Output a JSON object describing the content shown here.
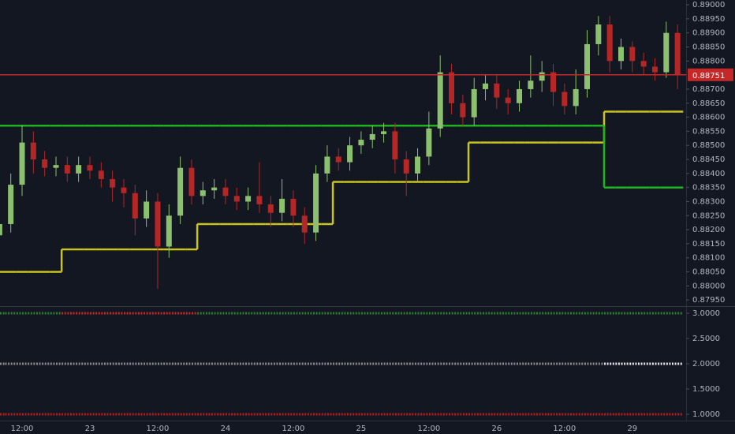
{
  "chart_data": [
    {
      "type": "candlestick",
      "categories": [
        null,
        null,
        "12:00",
        null,
        null,
        null,
        null,
        null,
        "23",
        null,
        null,
        null,
        null,
        null,
        "12:00",
        null,
        null,
        null,
        null,
        null,
        "24",
        null,
        null,
        null,
        null,
        null,
        "12:00",
        null,
        null,
        null,
        null,
        null,
        "25",
        null,
        null,
        null,
        null,
        null,
        "12:00",
        null,
        null,
        null,
        null,
        null,
        "26",
        null,
        null,
        null,
        null,
        null,
        "12:00",
        null,
        null,
        null,
        null,
        null,
        "29",
        null,
        null,
        null,
        null
      ],
      "open": [
        0.8818,
        0.8822,
        0.8836,
        0.8851,
        0.8845,
        0.8842,
        0.8843,
        0.884,
        0.8843,
        0.8841,
        0.8838,
        0.8835,
        0.8833,
        0.8824,
        0.883,
        0.8814,
        0.8825,
        0.8842,
        0.8832,
        0.8834,
        0.8835,
        0.8832,
        0.883,
        0.8832,
        0.8829,
        0.8826,
        0.8831,
        0.8825,
        0.8819,
        0.884,
        0.8846,
        0.8844,
        0.885,
        0.8852,
        0.8854,
        0.8855,
        0.8845,
        0.884,
        0.8846,
        0.8856,
        0.8876,
        0.8865,
        0.886,
        0.887,
        0.8872,
        0.8867,
        0.8865,
        0.887,
        0.8873,
        0.8876,
        0.8869,
        0.8864,
        0.887,
        0.8886,
        0.8893,
        0.888,
        0.8885,
        0.888,
        0.8878,
        0.8876,
        0.889
      ],
      "high": [
        0.8826,
        0.884,
        0.8857,
        0.8855,
        0.8848,
        0.8846,
        0.8846,
        0.8846,
        0.8846,
        0.8844,
        0.8841,
        0.8838,
        0.8836,
        0.8834,
        0.8833,
        0.8829,
        0.8846,
        0.8845,
        0.8837,
        0.8838,
        0.8838,
        0.8835,
        0.8835,
        0.8844,
        0.8832,
        0.8838,
        0.8834,
        0.8828,
        0.8843,
        0.885,
        0.8849,
        0.8853,
        0.8855,
        0.8857,
        0.8858,
        0.8858,
        0.8848,
        0.8849,
        0.8862,
        0.8882,
        0.8879,
        0.8868,
        0.8874,
        0.8875,
        0.8875,
        0.887,
        0.8873,
        0.8882,
        0.888,
        0.8879,
        0.8872,
        0.8877,
        0.8891,
        0.8896,
        0.8896,
        0.8888,
        0.8887,
        0.8883,
        0.8881,
        0.8894,
        0.8893
      ],
      "low": [
        0.8812,
        0.8819,
        0.8832,
        0.884,
        0.8839,
        0.8839,
        0.8837,
        0.8837,
        0.8838,
        0.8835,
        0.883,
        0.8828,
        0.8818,
        0.8821,
        0.8799,
        0.881,
        0.8822,
        0.8829,
        0.8829,
        0.8831,
        0.8829,
        0.8827,
        0.8827,
        0.8826,
        0.8821,
        0.8823,
        0.8821,
        0.8815,
        0.8816,
        0.8837,
        0.8841,
        0.8841,
        0.8847,
        0.8849,
        0.8851,
        0.884,
        0.8832,
        0.8837,
        0.8843,
        0.8853,
        0.8861,
        0.8857,
        0.8857,
        0.8866,
        0.8863,
        0.8861,
        0.8862,
        0.8867,
        0.8869,
        0.8864,
        0.8861,
        0.8861,
        0.8867,
        0.8882,
        0.8876,
        0.8877,
        0.8876,
        0.8875,
        0.8873,
        0.8874,
        0.887
      ],
      "close": [
        0.8822,
        0.8836,
        0.8851,
        0.8845,
        0.8842,
        0.8843,
        0.884,
        0.8843,
        0.8841,
        0.8838,
        0.8835,
        0.8833,
        0.8824,
        0.883,
        0.8814,
        0.8825,
        0.8842,
        0.8832,
        0.8834,
        0.8835,
        0.8832,
        0.883,
        0.8832,
        0.8829,
        0.8826,
        0.8831,
        0.8825,
        0.8819,
        0.884,
        0.8846,
        0.8844,
        0.885,
        0.8852,
        0.8854,
        0.8855,
        0.8845,
        0.884,
        0.8846,
        0.8856,
        0.8876,
        0.8865,
        0.886,
        0.887,
        0.8872,
        0.8867,
        0.8865,
        0.887,
        0.8873,
        0.8876,
        0.8869,
        0.8864,
        0.887,
        0.8886,
        0.8893,
        0.888,
        0.8885,
        0.888,
        0.8878,
        0.8876,
        0.889,
        0.88751
      ],
      "up_color": "#8cbf6e",
      "down_color": "#b52626",
      "series": [
        {
          "color": "#c9c41f",
          "values": [
            0.8805,
            0.8805,
            0.8805,
            0.8805,
            0.8805,
            0.8805,
            0.8813,
            0.8813,
            0.8813,
            0.8813,
            0.8813,
            0.8813,
            0.8813,
            0.8813,
            0.8813,
            0.8813,
            0.8813,
            0.8813,
            0.8822,
            0.8822,
            0.8822,
            0.8822,
            0.8822,
            0.8822,
            0.8822,
            0.8822,
            0.8822,
            0.8822,
            0.8822,
            0.8822,
            0.8837,
            0.8837,
            0.8837,
            0.8837,
            0.8837,
            0.8837,
            0.8837,
            0.8837,
            0.8837,
            0.8837,
            0.8837,
            0.8837,
            0.8851,
            0.8851,
            0.8851,
            0.8851,
            0.8851,
            0.8851,
            0.8851,
            0.8851,
            0.8851,
            0.8851,
            0.8851,
            0.8851,
            0.8862,
            0.8862,
            0.8862,
            0.8862,
            0.8862,
            0.8862,
            0.8862
          ]
        },
        {
          "color": "#1fb31f",
          "values": [
            0.8857,
            0.8857,
            0.8857,
            0.8857,
            0.8857,
            0.8857,
            0.8857,
            0.8857,
            0.8857,
            0.8857,
            0.8857,
            0.8857,
            0.8857,
            0.8857,
            0.8857,
            0.8857,
            0.8857,
            0.8857,
            0.8857,
            0.8857,
            0.8857,
            0.8857,
            0.8857,
            0.8857,
            0.8857,
            0.8857,
            0.8857,
            0.8857,
            0.8857,
            0.8857,
            0.8857,
            0.8857,
            0.8857,
            0.8857,
            0.8857,
            0.8857,
            0.8857,
            0.8857,
            0.8857,
            0.8857,
            0.8857,
            0.8857,
            0.8857,
            0.8857,
            0.8857,
            0.8857,
            0.8857,
            0.8857,
            0.8857,
            0.8857,
            0.8857,
            0.8857,
            0.8857,
            0.8857,
            0.8835,
            0.8835,
            0.8835,
            0.8835,
            0.8835,
            0.8835,
            0.8835
          ]
        }
      ],
      "price_line": {
        "value": 0.88751,
        "label": "0.88751",
        "color": "#c62828"
      },
      "ylim": [
        0.87928,
        0.89017
      ],
      "yticks": [
        {
          "value": 0.8795,
          "label": "0.87950"
        },
        {
          "value": 0.88,
          "label": "0.88000"
        },
        {
          "value": 0.8805,
          "label": "0.88050"
        },
        {
          "value": 0.881,
          "label": "0.88100"
        },
        {
          "value": 0.8815,
          "label": "0.88150"
        },
        {
          "value": 0.882,
          "label": "0.88200"
        },
        {
          "value": 0.8825,
          "label": "0.88250"
        },
        {
          "value": 0.883,
          "label": "0.88300"
        },
        {
          "value": 0.8835,
          "label": "0.88350"
        },
        {
          "value": 0.884,
          "label": "0.88400"
        },
        {
          "value": 0.8845,
          "label": "0.88450"
        },
        {
          "value": 0.885,
          "label": "0.88500"
        },
        {
          "value": 0.8855,
          "label": "0.88550"
        },
        {
          "value": 0.886,
          "label": "0.88600"
        },
        {
          "value": 0.8865,
          "label": "0.88650"
        },
        {
          "value": 0.887,
          "label": "0.88700"
        },
        {
          "value": 0.888,
          "label": "0.88800"
        },
        {
          "value": 0.8885,
          "label": "0.88850"
        },
        {
          "value": 0.889,
          "label": "0.88900"
        },
        {
          "value": 0.8895,
          "label": "0.88950"
        },
        {
          "value": 0.89,
          "label": "0.89000"
        }
      ]
    },
    {
      "type": "dots",
      "series": [
        {
          "value": 3,
          "colors": [
            "#2e7d32",
            "#2e7d32",
            "#2e7d32",
            "#2e7d32",
            "#2e7d32",
            "#2e7d32",
            "#c62828",
            "#c62828",
            "#c62828",
            "#c62828",
            "#c62828",
            "#c62828",
            "#c62828",
            "#c62828",
            "#c62828",
            "#c62828",
            "#c62828",
            "#c62828",
            "#2e7d32",
            "#2e7d32",
            "#2e7d32",
            "#2e7d32",
            "#2e7d32",
            "#2e7d32",
            "#2e7d32",
            "#2e7d32",
            "#2e7d32",
            "#2e7d32",
            "#2e7d32",
            "#2e7d32",
            "#2e7d32",
            "#2e7d32",
            "#2e7d32",
            "#2e7d32",
            "#2e7d32",
            "#2e7d32",
            "#2e7d32",
            "#2e7d32",
            "#2e7d32",
            "#2e7d32",
            "#2e7d32",
            "#2e7d32",
            "#2e7d32",
            "#2e7d32",
            "#2e7d32",
            "#2e7d32",
            "#2e7d32",
            "#2e7d32",
            "#2e7d32",
            "#2e7d32",
            "#2e7d32",
            "#2e7d32",
            "#2e7d32",
            "#2e7d32",
            "#2e7d32",
            "#2e7d32",
            "#2e7d32",
            "#2e7d32",
            "#2e7d32",
            "#2e7d32",
            "#2e7d32"
          ]
        },
        {
          "value": 2,
          "colors": [
            "#8a8a8a",
            "#8a8a8a",
            "#8a8a8a",
            "#8a8a8a",
            "#8a8a8a",
            "#8a8a8a",
            "#8a8a8a",
            "#8a8a8a",
            "#8a8a8a",
            "#8a8a8a",
            "#8a8a8a",
            "#8a8a8a",
            "#8a8a8a",
            "#8a8a8a",
            "#8a8a8a",
            "#8a8a8a",
            "#8a8a8a",
            "#8a8a8a",
            "#8a8a8a",
            "#8a8a8a",
            "#8a8a8a",
            "#8a8a8a",
            "#8a8a8a",
            "#8a8a8a",
            "#8a8a8a",
            "#8a8a8a",
            "#8a8a8a",
            "#8a8a8a",
            "#8a8a8a",
            "#8a8a8a",
            "#8a8a8a",
            "#8a8a8a",
            "#8a8a8a",
            "#8a8a8a",
            "#8a8a8a",
            "#8a8a8a",
            "#8a8a8a",
            "#8a8a8a",
            "#8a8a8a",
            "#8a8a8a",
            "#8a8a8a",
            "#8a8a8a",
            "#8a8a8a",
            "#8a8a8a",
            "#8a8a8a",
            "#8a8a8a",
            "#8a8a8a",
            "#8a8a8a",
            "#8a8a8a",
            "#8a8a8a",
            "#8a8a8a",
            "#8a8a8a",
            "#8a8a8a",
            "#8a8a8a",
            "#e6e6e6",
            "#e6e6e6",
            "#e6e6e6",
            "#e6e6e6",
            "#e6e6e6",
            "#e6e6e6",
            "#e6e6e6"
          ]
        },
        {
          "value": 1,
          "colors": [
            "#b71c1c",
            "#b71c1c",
            "#b71c1c",
            "#b71c1c",
            "#b71c1c",
            "#b71c1c",
            "#b71c1c",
            "#b71c1c",
            "#b71c1c",
            "#b71c1c",
            "#b71c1c",
            "#b71c1c",
            "#b71c1c",
            "#b71c1c",
            "#b71c1c",
            "#b71c1c",
            "#b71c1c",
            "#b71c1c",
            "#b71c1c",
            "#b71c1c",
            "#b71c1c",
            "#b71c1c",
            "#b71c1c",
            "#b71c1c",
            "#b71c1c",
            "#b71c1c",
            "#b71c1c",
            "#b71c1c",
            "#b71c1c",
            "#b71c1c",
            "#b71c1c",
            "#b71c1c",
            "#b71c1c",
            "#b71c1c",
            "#b71c1c",
            "#b71c1c",
            "#b71c1c",
            "#b71c1c",
            "#b71c1c",
            "#b71c1c",
            "#b71c1c",
            "#b71c1c",
            "#b71c1c",
            "#b71c1c",
            "#b71c1c",
            "#b71c1c",
            "#b71c1c",
            "#b71c1c",
            "#b71c1c",
            "#b71c1c",
            "#b71c1c",
            "#b71c1c",
            "#b71c1c",
            "#b71c1c",
            "#b71c1c",
            "#b71c1c",
            "#b71c1c",
            "#b71c1c",
            "#b71c1c",
            "#b71c1c",
            "#b71c1c"
          ]
        }
      ],
      "ylim": [
        0.875,
        3.14
      ],
      "yticks": [
        {
          "value": 1,
          "label": "1.0000"
        },
        {
          "value": 1.5,
          "label": "1.5000"
        },
        {
          "value": 2,
          "label": "2.0000"
        },
        {
          "value": 2.5,
          "label": "2.5000"
        },
        {
          "value": 3,
          "label": "3.0000"
        }
      ]
    }
  ]
}
